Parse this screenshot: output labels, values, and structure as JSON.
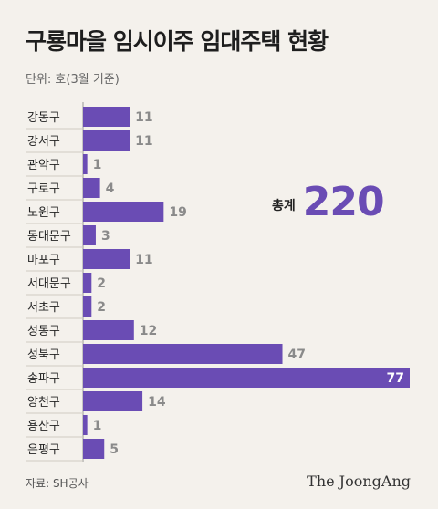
{
  "title": "구룡마을 임시이주 임대주택 현황",
  "unit_note": "단위: 호(3월 기준)",
  "total": {
    "label": "총계",
    "value": "220"
  },
  "source": "자료: SH공사",
  "logo": "The JoongAng",
  "colors": {
    "bar": "#6a4cb4",
    "value_text": "#8a8a8a",
    "inside_value_text": "#ffffff",
    "background": "#f4f1ec"
  },
  "chart_data": {
    "type": "bar",
    "orientation": "horizontal",
    "categories": [
      "강동구",
      "강서구",
      "관악구",
      "구로구",
      "노원구",
      "동대문구",
      "마포구",
      "서대문구",
      "서초구",
      "성동구",
      "성북구",
      "송파구",
      "양천구",
      "용산구",
      "은평구"
    ],
    "values": [
      11,
      11,
      1,
      4,
      19,
      3,
      11,
      2,
      2,
      12,
      47,
      77,
      14,
      1,
      5
    ],
    "xlim": [
      0,
      77
    ],
    "grid": false,
    "legend": "none"
  }
}
